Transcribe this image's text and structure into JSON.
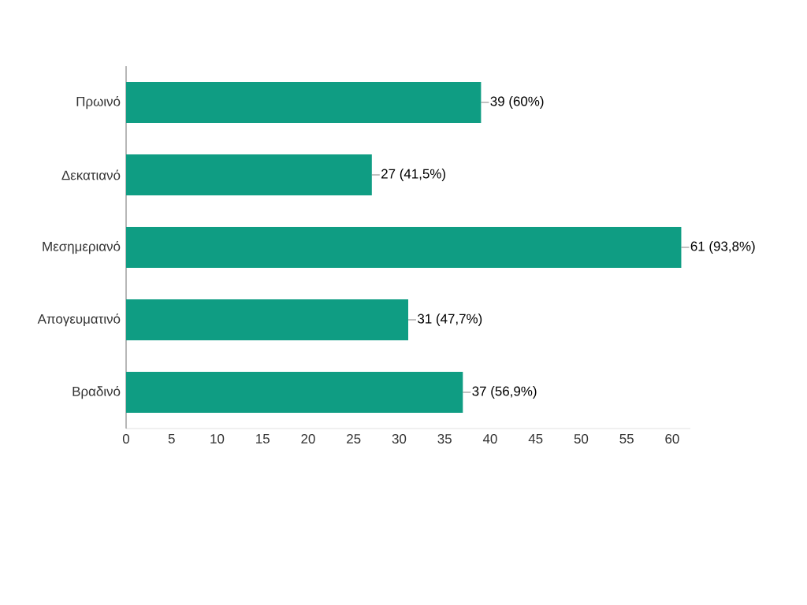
{
  "chart_data": {
    "type": "bar",
    "orientation": "horizontal",
    "categories": [
      "Πρωινό",
      "Δεκατιανό",
      "Μεσημεριανό",
      "Απογευματινό",
      "Βραδινό"
    ],
    "values": [
      39,
      27,
      61,
      31,
      37
    ],
    "value_labels": [
      "39 (60%)",
      "27 (41,5%)",
      "61 (93,8%)",
      "31 (47,7%)",
      "37 (56,9%)"
    ],
    "color": "#0f9d83",
    "xlim": [
      0,
      62
    ],
    "xticks": [
      0,
      5,
      10,
      15,
      20,
      25,
      30,
      35,
      40,
      45,
      50,
      55,
      60
    ]
  }
}
